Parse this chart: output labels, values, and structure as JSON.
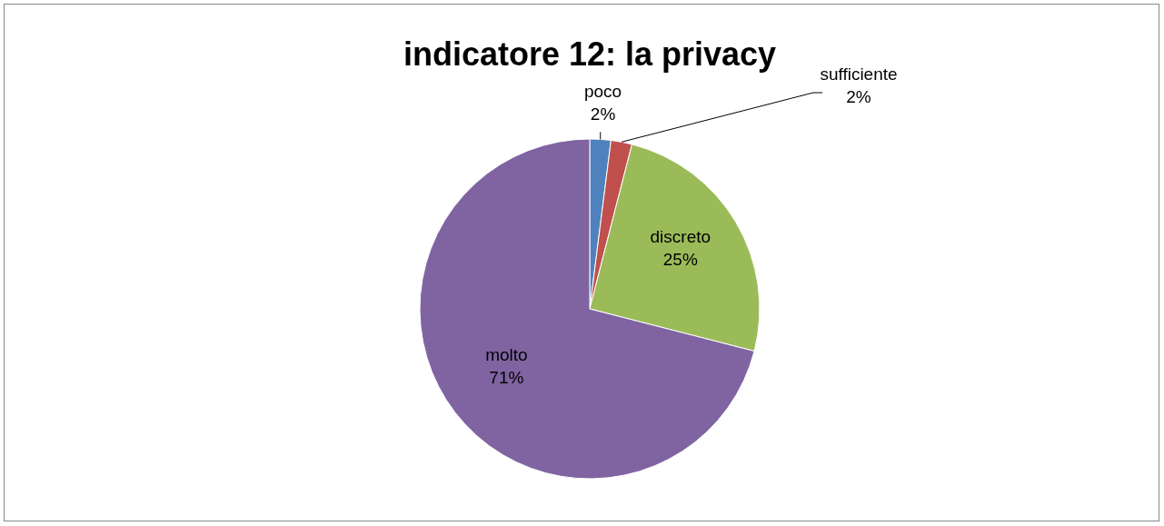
{
  "chart_data": {
    "type": "pie",
    "title": "indicatore 12: la privacy",
    "categories": [
      "poco",
      "sufficiente",
      "discreto",
      "molto"
    ],
    "values": [
      2,
      2,
      25,
      71
    ],
    "value_labels": [
      "2%",
      "2%",
      "25%",
      "71%"
    ],
    "colors": [
      "#4f81bd",
      "#c0504d",
      "#9bbb59",
      "#8064a2"
    ],
    "legend": false
  }
}
